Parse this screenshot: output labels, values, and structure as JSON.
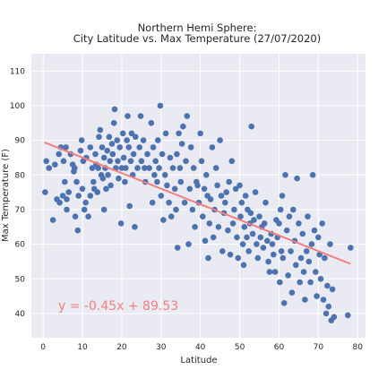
{
  "chart_data": {
    "type": "scatter",
    "title_lines": [
      "Northern Hemi Sphere:",
      "City Latitude vs. Max Temperature (27/07/2020)"
    ],
    "xlabel": "Latitude",
    "ylabel": "Max Temperature (F)",
    "xlim": [
      -3,
      82
    ],
    "ylim": [
      33,
      115
    ],
    "xticks": [
      0,
      10,
      20,
      30,
      40,
      50,
      60,
      70,
      80
    ],
    "yticks": [
      40,
      50,
      60,
      70,
      80,
      90,
      100,
      110
    ],
    "grid": true,
    "colors": {
      "background": "#eaeaf2",
      "grid": "#ffffff",
      "points": "#4c72b0",
      "regression": "#f08080",
      "equation": "#f08080"
    },
    "regression": {
      "slope": -0.45,
      "intercept": 89.53,
      "x_range": [
        0.3,
        78.2
      ],
      "equation": "y = -0.45x + 89.53"
    },
    "points": [
      [
        0.5,
        75
      ],
      [
        0.8,
        84
      ],
      [
        1.5,
        82
      ],
      [
        2.5,
        67
      ],
      [
        3,
        83
      ],
      [
        3.5,
        73
      ],
      [
        4,
        86
      ],
      [
        4.2,
        72
      ],
      [
        4.5,
        88
      ],
      [
        5,
        74
      ],
      [
        5.2,
        84
      ],
      [
        5.5,
        78
      ],
      [
        5.8,
        88
      ],
      [
        6,
        73
      ],
      [
        6,
        70
      ],
      [
        6.5,
        75
      ],
      [
        7,
        86
      ],
      [
        7.5,
        83
      ],
      [
        7.8,
        81
      ],
      [
        8,
        82
      ],
      [
        8.2,
        68
      ],
      [
        8.5,
        78
      ],
      [
        8.8,
        64
      ],
      [
        9,
        74
      ],
      [
        9.5,
        87
      ],
      [
        9.8,
        90
      ],
      [
        10,
        76
      ],
      [
        10.2,
        84
      ],
      [
        10.5,
        70
      ],
      [
        10.8,
        72
      ],
      [
        11,
        85
      ],
      [
        11.5,
        68
      ],
      [
        12,
        74
      ],
      [
        12,
        88
      ],
      [
        12.5,
        82
      ],
      [
        12.8,
        78
      ],
      [
        13,
        76
      ],
      [
        13.3,
        86
      ],
      [
        13.5,
        83
      ],
      [
        13.8,
        75
      ],
      [
        14,
        82
      ],
      [
        14.2,
        91
      ],
      [
        14.5,
        93
      ],
      [
        14.8,
        80
      ],
      [
        15,
        88
      ],
      [
        15.2,
        79
      ],
      [
        15.5,
        85
      ],
      [
        15.5,
        70
      ],
      [
        15.8,
        82
      ],
      [
        16,
        76
      ],
      [
        16.3,
        87
      ],
      [
        16.5,
        80
      ],
      [
        16.8,
        91
      ],
      [
        17,
        84
      ],
      [
        17.2,
        77
      ],
      [
        17.5,
        89
      ],
      [
        17.7,
        86
      ],
      [
        18,
        95
      ],
      [
        18.2,
        99
      ],
      [
        18.5,
        82
      ],
      [
        18.8,
        90
      ],
      [
        19,
        84
      ],
      [
        19.2,
        79
      ],
      [
        19.5,
        88
      ],
      [
        19.8,
        66
      ],
      [
        20,
        82
      ],
      [
        20.3,
        92
      ],
      [
        20.5,
        85
      ],
      [
        20.8,
        78
      ],
      [
        21,
        82
      ],
      [
        21.3,
        90
      ],
      [
        21.5,
        97
      ],
      [
        21.8,
        88
      ],
      [
        22,
        71
      ],
      [
        22.3,
        84
      ],
      [
        22.5,
        92
      ],
      [
        22.8,
        80
      ],
      [
        23,
        86
      ],
      [
        23.3,
        65
      ],
      [
        23.5,
        91
      ],
      [
        24,
        82
      ],
      [
        24.5,
        88
      ],
      [
        24.8,
        97
      ],
      [
        25,
        84
      ],
      [
        25.5,
        90
      ],
      [
        25.8,
        82
      ],
      [
        26,
        78
      ],
      [
        26.5,
        86
      ],
      [
        27,
        82
      ],
      [
        27.5,
        95
      ],
      [
        27.8,
        72
      ],
      [
        28,
        88
      ],
      [
        28.3,
        80
      ],
      [
        28.6,
        84
      ],
      [
        29,
        78
      ],
      [
        29.2,
        90
      ],
      [
        29.5,
        82
      ],
      [
        29.8,
        100
      ],
      [
        30,
        74
      ],
      [
        30.3,
        86
      ],
      [
        30.6,
        67
      ],
      [
        31,
        80
      ],
      [
        31.2,
        92
      ],
      [
        31.5,
        77
      ],
      [
        32,
        72
      ],
      [
        32.3,
        85
      ],
      [
        32.6,
        68
      ],
      [
        33,
        82
      ],
      [
        33.5,
        76
      ],
      [
        33.8,
        70
      ],
      [
        34,
        86
      ],
      [
        34.2,
        59
      ],
      [
        34.5,
        92
      ],
      [
        34.8,
        82
      ],
      [
        35,
        78
      ],
      [
        35.3,
        89
      ],
      [
        35.6,
        94
      ],
      [
        36,
        72
      ],
      [
        36.3,
        84
      ],
      [
        36.6,
        97
      ],
      [
        37,
        60
      ],
      [
        37.3,
        76
      ],
      [
        37.6,
        88
      ],
      [
        38,
        70
      ],
      [
        38.3,
        82
      ],
      [
        38.6,
        65
      ],
      [
        39,
        78
      ],
      [
        39.3,
        77
      ],
      [
        39.6,
        72
      ],
      [
        40,
        92
      ],
      [
        40.3,
        84
      ],
      [
        40.6,
        68
      ],
      [
        41,
        76
      ],
      [
        41.2,
        61
      ],
      [
        41.5,
        80
      ],
      [
        41.8,
        74
      ],
      [
        42,
        56
      ],
      [
        42.3,
        66
      ],
      [
        42.6,
        73
      ],
      [
        43,
        88
      ],
      [
        43.3,
        62
      ],
      [
        43.6,
        70
      ],
      [
        44,
        82
      ],
      [
        44.3,
        77
      ],
      [
        44.6,
        65
      ],
      [
        45,
        90
      ],
      [
        45.3,
        74
      ],
      [
        45.6,
        58
      ],
      [
        46,
        69
      ],
      [
        46.3,
        72
      ],
      [
        46.6,
        75
      ],
      [
        47,
        64
      ],
      [
        47.3,
        78
      ],
      [
        47.6,
        57
      ],
      [
        48,
        84
      ],
      [
        48.3,
        66
      ],
      [
        48.6,
        70
      ],
      [
        49,
        76
      ],
      [
        49.3,
        62
      ],
      [
        49.6,
        56
      ],
      [
        50,
        77
      ],
      [
        50.2,
        68
      ],
      [
        50.5,
        72
      ],
      [
        50.8,
        60
      ],
      [
        51,
        54
      ],
      [
        51.2,
        65
      ],
      [
        51.5,
        74
      ],
      [
        51.8,
        62
      ],
      [
        52,
        70
      ],
      [
        52.3,
        58
      ],
      [
        52.6,
        66
      ],
      [
        52.8,
        69
      ],
      [
        53,
        94
      ],
      [
        53.3,
        63
      ],
      [
        53.6,
        67
      ],
      [
        54,
        75
      ],
      [
        54.3,
        60
      ],
      [
        54.6,
        56
      ],
      [
        55,
        68
      ],
      [
        55.3,
        62
      ],
      [
        55.6,
        65
      ],
      [
        56,
        59
      ],
      [
        56.3,
        66
      ],
      [
        56.6,
        72
      ],
      [
        57,
        61
      ],
      [
        57.3,
        55
      ],
      [
        57.6,
        52
      ],
      [
        58,
        63
      ],
      [
        58.3,
        60
      ],
      [
        58.6,
        57
      ],
      [
        59,
        52
      ],
      [
        59.3,
        67
      ],
      [
        59.6,
        62
      ],
      [
        60,
        66
      ],
      [
        60.2,
        49
      ],
      [
        60.4,
        70
      ],
      [
        60.6,
        58
      ],
      [
        60.8,
        74
      ],
      [
        61,
        56
      ],
      [
        61.3,
        43
      ],
      [
        61.6,
        80
      ],
      [
        62,
        64
      ],
      [
        62.3,
        51
      ],
      [
        62.6,
        68
      ],
      [
        63,
        58
      ],
      [
        63.3,
        46
      ],
      [
        63.6,
        70
      ],
      [
        64,
        61
      ],
      [
        64.3,
        54
      ],
      [
        64.6,
        79
      ],
      [
        65,
        66
      ],
      [
        65.3,
        49
      ],
      [
        65.6,
        56
      ],
      [
        66,
        63
      ],
      [
        66.3,
        52
      ],
      [
        66.6,
        44
      ],
      [
        67,
        58
      ],
      [
        67.3,
        68
      ],
      [
        67.6,
        55
      ],
      [
        68,
        49
      ],
      [
        68.3,
        60
      ],
      [
        68.6,
        80
      ],
      [
        69,
        64
      ],
      [
        69.3,
        52
      ],
      [
        69.6,
        45
      ],
      [
        70,
        62
      ],
      [
        70.3,
        57
      ],
      [
        70.6,
        50
      ],
      [
        71,
        66
      ],
      [
        71.3,
        44
      ],
      [
        71.6,
        56
      ],
      [
        72,
        40
      ],
      [
        72.3,
        48
      ],
      [
        72.6,
        42
      ],
      [
        73,
        60
      ],
      [
        73.3,
        38
      ],
      [
        73.6,
        47
      ],
      [
        74,
        39
      ],
      [
        77.5,
        39.5
      ],
      [
        78.2,
        59
      ]
    ]
  }
}
